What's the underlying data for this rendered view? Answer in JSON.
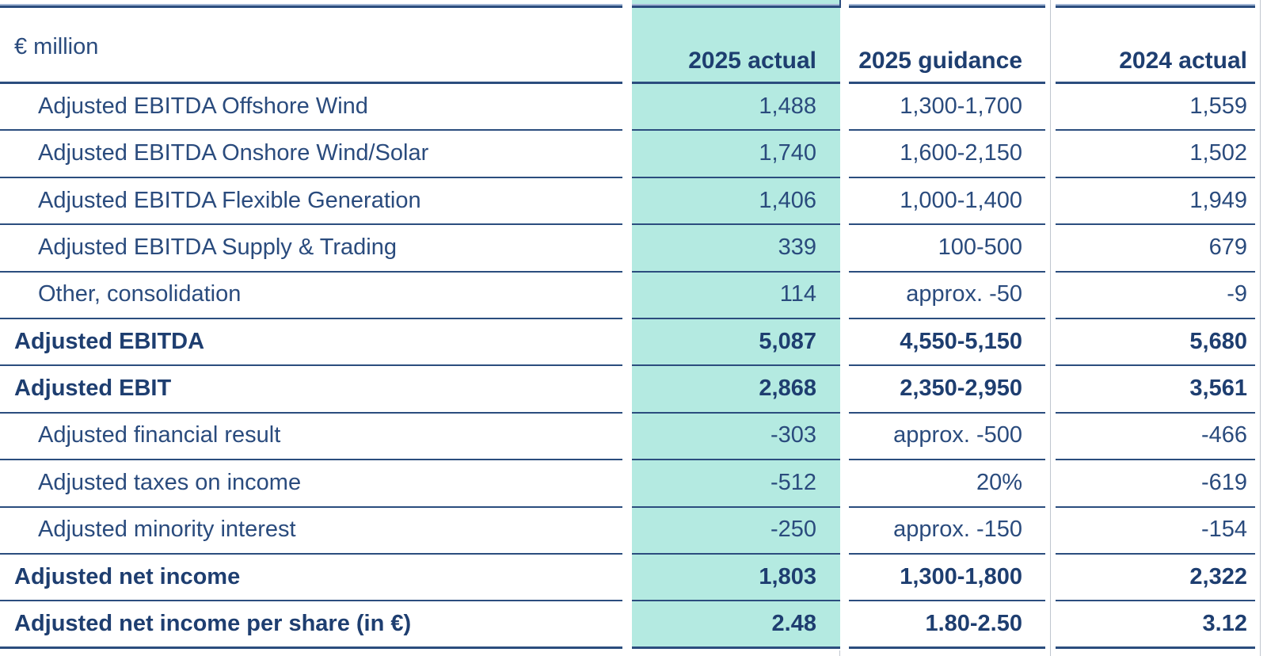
{
  "table": {
    "unit_label": "€ million",
    "columns": [
      "2025 actual",
      "2025 guidance",
      "2024 actual"
    ],
    "highlighted_column": "2025 actual",
    "rows": [
      {
        "label": "Adjusted EBITDA Offshore Wind",
        "bold": false,
        "values": [
          "1,488",
          "1,300-1,700",
          "1,559"
        ]
      },
      {
        "label": "Adjusted EBITDA Onshore Wind/Solar",
        "bold": false,
        "values": [
          "1,740",
          "1,600-2,150",
          "1,502"
        ]
      },
      {
        "label": "Adjusted EBITDA Flexible Generation",
        "bold": false,
        "values": [
          "1,406",
          "1,000-1,400",
          "1,949"
        ]
      },
      {
        "label": "Adjusted EBITDA Supply & Trading",
        "bold": false,
        "values": [
          "339",
          "100-500",
          "679"
        ]
      },
      {
        "label": "Other, consolidation",
        "bold": false,
        "values": [
          "114",
          "approx. -50",
          "-9"
        ]
      },
      {
        "label": "Adjusted EBITDA",
        "bold": true,
        "values": [
          "5,087",
          "4,550-5,150",
          "5,680"
        ]
      },
      {
        "label": "Adjusted EBIT",
        "bold": true,
        "values": [
          "2,868",
          "2,350-2,950",
          "3,561"
        ]
      },
      {
        "label": "Adjusted financial result",
        "bold": false,
        "values": [
          "-303",
          "approx. -500",
          "-466"
        ]
      },
      {
        "label": "Adjusted taxes on income",
        "bold": false,
        "values": [
          "-512",
          "20%",
          "-619"
        ]
      },
      {
        "label": "Adjusted minority interest",
        "bold": false,
        "values": [
          "-250",
          "approx. -150",
          "-154"
        ]
      },
      {
        "label": "Adjusted net income",
        "bold": true,
        "values": [
          "1,803",
          "1,300-1,800",
          "2,322"
        ]
      },
      {
        "label": "Adjusted net income per share (in €)",
        "bold": true,
        "values": [
          "2.48",
          "1.80-2.50",
          "3.12"
        ]
      }
    ]
  },
  "colors": {
    "highlight_bg": "#b4eae1",
    "text_navy": "#2a4b7d",
    "bold_navy": "#1e3e70",
    "rule_navy": "#2b4d7e",
    "divider_gray": "#c0c6cf"
  }
}
